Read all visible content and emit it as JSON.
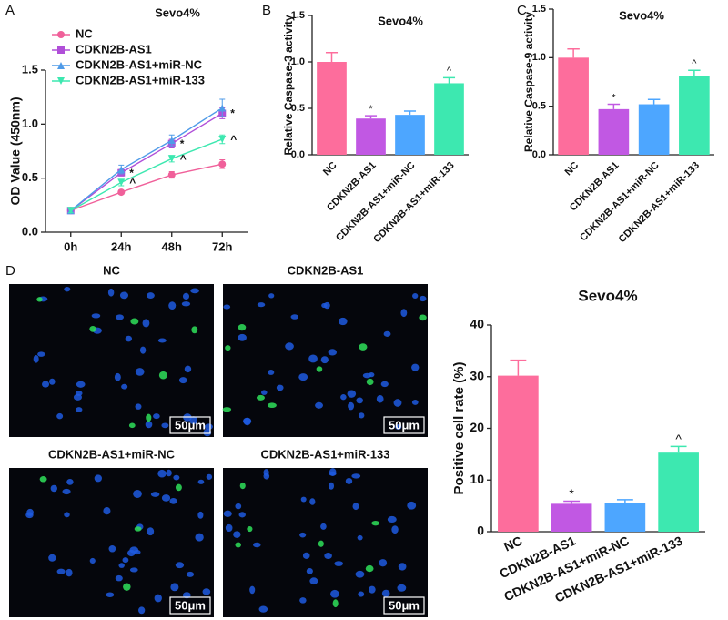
{
  "panels": [
    "A",
    "B",
    "C",
    "D"
  ],
  "images": [
    {
      "title": "NC",
      "scale_bar": "50μm"
    },
    {
      "title": "CDKN2B-AS1",
      "scale_bar": "50μm"
    },
    {
      "title": "CDKN2B-AS1+miR-NC",
      "scale_bar": "50μm"
    },
    {
      "title": "CDKN2B-AS1+miR-133",
      "scale_bar": "50μm"
    }
  ],
  "chart_data": [
    {
      "type": "line",
      "title": "Sevo4%",
      "y_label": "OD Value (450nm)",
      "legend": "upper left",
      "categories": [
        "0h",
        "24h",
        "48h",
        "72h"
      ],
      "ylim": [
        0,
        1.5
      ],
      "yticks": [
        {
          "value": 0,
          "label": "0.0"
        },
        0.5,
        {
          "value": 1,
          "label": "1.0"
        },
        1.5
      ],
      "series": [
        {
          "name": "NC",
          "color": "#f0609a",
          "marker": "circle",
          "values": [
            0.2,
            0.37,
            0.53,
            0.63
          ],
          "errors": [
            0.02,
            0.02,
            0.03,
            0.04
          ],
          "markers": [
            null,
            null,
            null,
            null
          ]
        },
        {
          "name": "CDKN2B-AS1",
          "color": "#b04fd8",
          "marker": "square",
          "values": [
            0.2,
            0.55,
            0.82,
            1.1
          ],
          "errors": [
            0.02,
            0.03,
            0.04,
            0.05
          ],
          "markers": [
            null,
            "*",
            "*",
            "*"
          ]
        },
        {
          "name": "CDKN2B-AS1+miR-NC",
          "color": "#4f9be8",
          "marker": "triangle",
          "values": [
            0.2,
            0.58,
            0.85,
            1.15
          ],
          "errors": [
            0.02,
            0.04,
            0.05,
            0.08
          ],
          "markers": [
            null,
            null,
            null,
            null
          ]
        },
        {
          "name": "CDKN2B-AS1+miR-133",
          "color": "#3de8b0",
          "marker": "triangle-down",
          "values": [
            0.2,
            0.46,
            0.68,
            0.86
          ],
          "errors": [
            0.02,
            0.03,
            0.03,
            0.04
          ],
          "markers": [
            null,
            "^",
            "^",
            "^"
          ]
        }
      ]
    },
    {
      "type": "bar",
      "title": "Sevo4%",
      "y_label": "Relative Caspase-3 activity",
      "categories": [
        "NC",
        "CDKN2B-AS1",
        "CDKN2B-AS1+miR-NC",
        "CDKN2B-AS1+miR-133"
      ],
      "colors": [
        "#fd6d9c",
        "#c158e3",
        "#4da6ff",
        "#3de8b0"
      ],
      "values": [
        1.0,
        0.39,
        0.43,
        0.77
      ],
      "errors": [
        0.1,
        0.03,
        0.04,
        0.06
      ],
      "markers": [
        null,
        "*",
        null,
        "^"
      ],
      "ylim": [
        0,
        1.5
      ],
      "yticks": [
        {
          "value": 0,
          "label": "0.0"
        },
        0.5,
        {
          "value": 1,
          "label": "1.0"
        },
        1.5
      ]
    },
    {
      "type": "bar",
      "title": "Sevo4%",
      "y_label": "Relative Caspase-9 activity",
      "categories": [
        "NC",
        "CDKN2B-AS1",
        "CDKN2B-AS1+miR-NC",
        "CDKN2B-AS1+miR-133"
      ],
      "colors": [
        "#fd6d9c",
        "#c158e3",
        "#4da6ff",
        "#3de8b0"
      ],
      "values": [
        1.0,
        0.47,
        0.52,
        0.81
      ],
      "errors": [
        0.09,
        0.05,
        0.05,
        0.06
      ],
      "markers": [
        null,
        "*",
        null,
        "^"
      ],
      "ylim": [
        0,
        1.5
      ],
      "yticks": [
        {
          "value": 0,
          "label": "0.0"
        },
        0.5,
        {
          "value": 1,
          "label": "1.0"
        },
        1.5
      ]
    },
    {
      "type": "bar",
      "title": "Sevo4%",
      "y_label": "Positive cell rate (%)",
      "categories": [
        "NC",
        "CDKN2B-AS1",
        "CDKN2B-AS1+miR-NC",
        "CDKN2B-AS1+miR-133"
      ],
      "colors": [
        "#fd6d9c",
        "#c158e3",
        "#4da6ff",
        "#3de8b0"
      ],
      "values": [
        30.2,
        5.4,
        5.6,
        15.3
      ],
      "errors": [
        3.0,
        0.5,
        0.6,
        1.2
      ],
      "markers": [
        null,
        "*",
        null,
        "^"
      ],
      "ylim": [
        0,
        40
      ],
      "yticks": [
        0,
        10,
        20,
        30,
        40
      ]
    }
  ]
}
